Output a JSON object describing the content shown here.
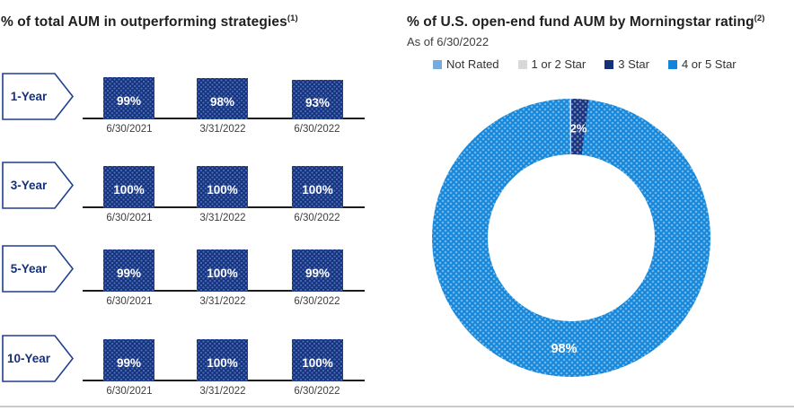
{
  "chart_data": [
    {
      "type": "bar",
      "title": "% of total AUM in outperforming strategies",
      "title_sup": "(1)",
      "unit": "%",
      "ylim": [
        0,
        100
      ],
      "grid": false,
      "bar_color": "#14317e",
      "value_label_color": "#ffffff",
      "categories": [
        "6/30/2021",
        "3/31/2022",
        "6/30/2022"
      ],
      "groups": [
        {
          "period": "1-Year",
          "values": [
            99,
            98,
            93
          ],
          "labels": [
            "99%",
            "98%",
            "93%"
          ]
        },
        {
          "period": "3-Year",
          "values": [
            100,
            100,
            100
          ],
          "labels": [
            "100%",
            "100%",
            "100%"
          ]
        },
        {
          "period": "5-Year",
          "values": [
            99,
            100,
            99
          ],
          "labels": [
            "99%",
            "100%",
            "99%"
          ]
        },
        {
          "period": "10-Year",
          "values": [
            99,
            100,
            100
          ],
          "labels": [
            "99%",
            "100%",
            "100%"
          ]
        }
      ]
    },
    {
      "type": "pie",
      "donut": true,
      "title": "% of U.S. open-end fund AUM by Morningstar rating",
      "title_sup": "(2)",
      "subtitle": "As of 6/30/2022",
      "legend_position": "top",
      "slices": [
        {
          "label": "Not Rated",
          "value": 0,
          "color": "#74acdc",
          "data_label": ""
        },
        {
          "label": "1 or 2 Star",
          "value": 0,
          "color": "#d8d8d8",
          "data_label": ""
        },
        {
          "label": "3 Star",
          "value": 2,
          "color": "#14317e",
          "data_label": "2%"
        },
        {
          "label": "4 or 5 Star",
          "value": 98,
          "color": "#1386db",
          "data_label": "98%"
        }
      ]
    }
  ]
}
